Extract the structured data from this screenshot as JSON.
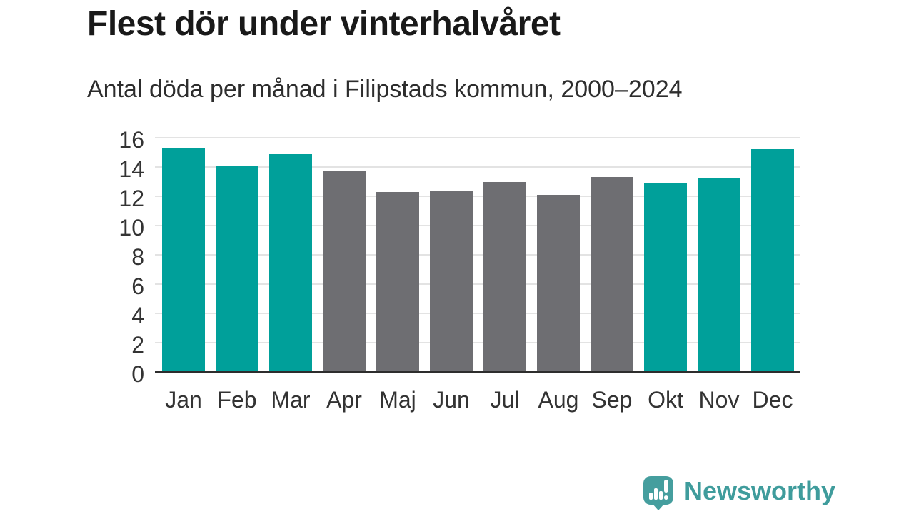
{
  "title": "Flest dör under vinterhalvåret",
  "subtitle": "Antal döda per månad i Filipstads kommun, 2000–2024",
  "chart_data": {
    "type": "bar",
    "title": "Flest dör under vinterhalvåret",
    "subtitle": "Antal döda per månad i Filipstads kommun, 2000–2024",
    "categories": [
      "Jan",
      "Feb",
      "Mar",
      "Apr",
      "Maj",
      "Jun",
      "Jul",
      "Aug",
      "Sep",
      "Okt",
      "Nov",
      "Dec"
    ],
    "values": [
      15.3,
      14.1,
      14.9,
      13.7,
      12.3,
      12.4,
      13.0,
      12.1,
      13.3,
      12.9,
      13.2,
      15.2
    ],
    "bar_seasons": [
      "winter",
      "winter",
      "winter",
      "summer",
      "summer",
      "summer",
      "summer",
      "summer",
      "summer",
      "winter",
      "winter",
      "winter"
    ],
    "xlabel": "",
    "ylabel": "",
    "ylim": [
      0,
      16
    ],
    "yticks": [
      0,
      2,
      4,
      6,
      8,
      10,
      12,
      14,
      16
    ],
    "grid": true,
    "legend": false
  },
  "colors": {
    "winter_bar": "#00a09a",
    "summer_bar": "#6e6e72",
    "gridline": "#e3e3e3",
    "axis_line": "#2d2d2d",
    "title_text": "#191919",
    "subtitle_text": "#2d2d2d",
    "tick_text": "#333333",
    "brand_bubble": "#459e9e",
    "brand_text": "#3f9c9c",
    "background": "#ffffff"
  },
  "footer": {
    "brand_name": "Newsworthy",
    "logo_icon": "speech-bubble-bar-chart-icon"
  }
}
